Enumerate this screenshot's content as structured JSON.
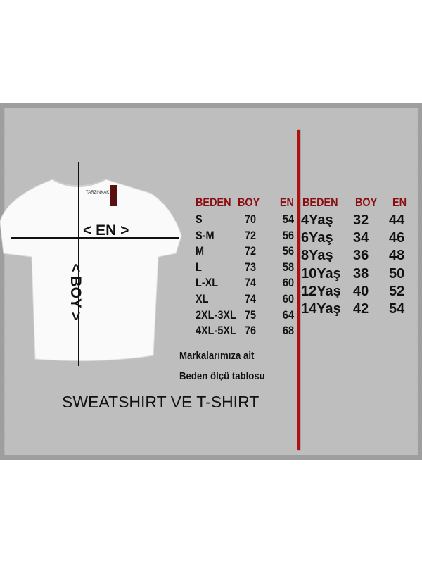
{
  "brand_tag": "TARZINKAK",
  "measure_labels": {
    "width": "< EN >",
    "length": "< BOY >"
  },
  "adult_table": {
    "headers": [
      "BEDEN",
      "BOY",
      "EN"
    ],
    "rows": [
      [
        "S",
        "70",
        "54"
      ],
      [
        "S-M",
        "72",
        "56"
      ],
      [
        "M",
        "72",
        "56"
      ],
      [
        "L",
        "73",
        "58"
      ],
      [
        "L-XL",
        "74",
        "60"
      ],
      [
        "XL",
        "74",
        "60"
      ],
      [
        "2XL-3XL",
        "75",
        "64"
      ],
      [
        "4XL-5XL",
        "76",
        "68"
      ]
    ]
  },
  "kids_table": {
    "headers": [
      "BEDEN",
      "BOY",
      "EN"
    ],
    "rows": [
      [
        "4Yaş",
        "32",
        "44"
      ],
      [
        "6Yaş",
        "34",
        "46"
      ],
      [
        "8Yaş",
        "36",
        "48"
      ],
      [
        "10Yaş",
        "38",
        "50"
      ],
      [
        "12Yaş",
        "40",
        "52"
      ],
      [
        "14Yaş",
        "42",
        "54"
      ]
    ]
  },
  "note_line1": "Markalarımıza ait",
  "note_line2": "Beden ölçü tablosu",
  "product_title": "SWEATSHIRT VE T-SHIRT",
  "colors": {
    "header_red": "#8b0d12",
    "divider_red": "#b01010",
    "background_gray": "#bebebe"
  }
}
